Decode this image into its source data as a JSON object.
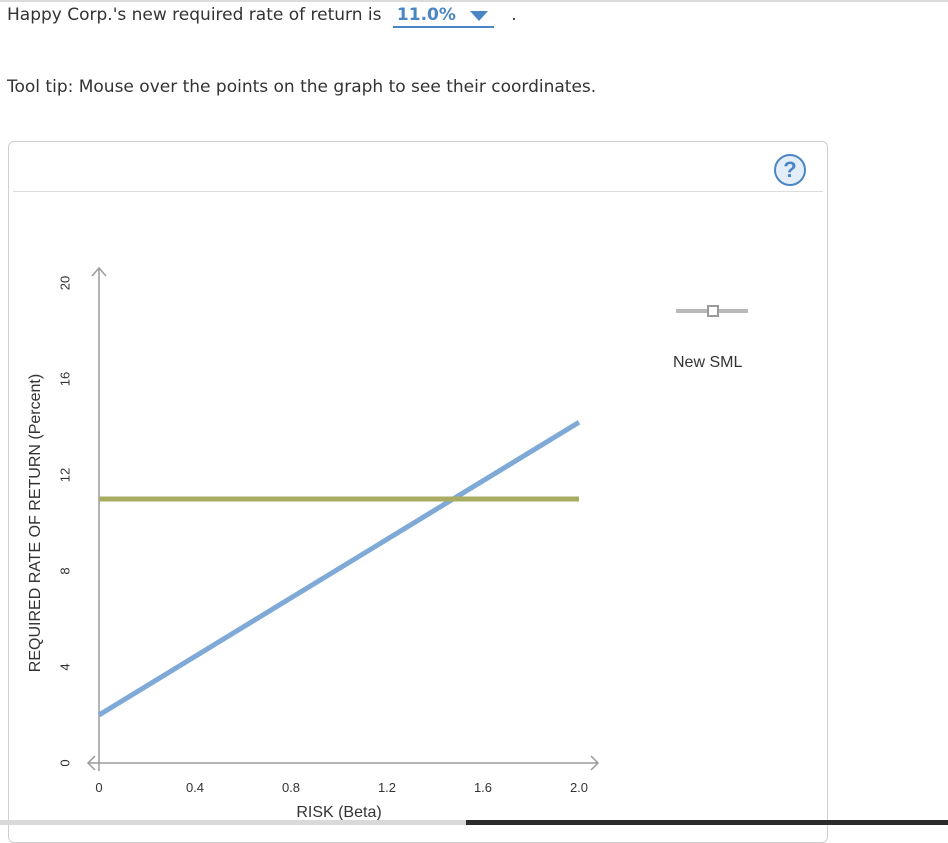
{
  "question": {
    "prefix": "Happy Corp.'s new required rate of return is",
    "selected_value": "11.0%",
    "suffix": "."
  },
  "tooltip_note": "Tool tip: Mouse over the points on the graph to see their coordinates.",
  "help_button": {
    "label": "?",
    "icon": "help-icon"
  },
  "legend": {
    "items": [
      {
        "label": "New SML",
        "color": "#b9b9b9"
      }
    ]
  },
  "colors": {
    "accent": "#4a86c5",
    "sml_line": "#7fa9d6",
    "required_return_line": "#a9ad63",
    "axis": "#9b9b9b"
  },
  "chart_data": {
    "type": "line",
    "xlabel": "RISK (Beta)",
    "ylabel": "REQUIRED RATE OF RETURN (Percent)",
    "xlim": [
      0,
      2.0
    ],
    "ylim": [
      0,
      20
    ],
    "x_ticks": [
      0,
      0.4,
      0.8,
      1.2,
      1.6,
      2.0
    ],
    "x_tick_labels": [
      "0",
      "0.4",
      "0.8",
      "1.2",
      "1.6",
      "2.0"
    ],
    "y_ticks": [
      0,
      4,
      8,
      12,
      16,
      20
    ],
    "y_tick_labels": [
      "0",
      "4",
      "8",
      "12",
      "16",
      "20"
    ],
    "grid": false,
    "legend_position": "top-right",
    "series": [
      {
        "x": [
          0,
          2.0
        ],
        "y": [
          2.0,
          14.2
        ],
        "color": "#7fa9d6"
      },
      {
        "x": [
          0,
          2.0
        ],
        "y": [
          11.0,
          11.0
        ],
        "color": "#a9ad63"
      },
      {
        "name": "New SML",
        "x": [],
        "y": [],
        "color": "#b9b9b9"
      }
    ]
  }
}
